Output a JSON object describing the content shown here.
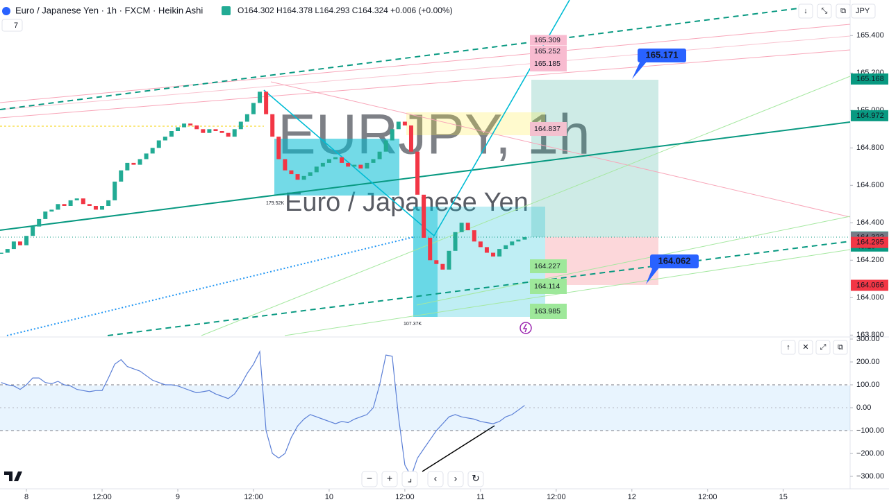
{
  "chart_data": [
    {
      "type": "candlestick",
      "title": "Euro / Japanese Yen · 1h · FXCM · Heikin Ashi",
      "legend_values": "O164.302 H164.378 L164.293 C164.324 +0.006 (+0.00%)",
      "indicator_badge": "7",
      "currency": "JPY",
      "watermark": "EURJPY, 1h",
      "watermark_subtitle": "Euro / Japanese Yen",
      "up_color": "#22ab94",
      "down_color": "#f23645",
      "x": [
        -4,
        -3,
        -2,
        -1,
        0,
        1,
        2,
        3,
        4,
        5,
        6,
        7,
        8,
        9,
        10,
        11,
        12,
        13,
        14,
        15,
        16,
        17,
        18,
        19,
        20,
        21,
        22,
        23,
        24,
        25,
        26,
        27,
        28,
        29,
        30,
        31,
        32,
        33,
        34,
        35,
        36,
        37,
        38,
        39,
        40,
        41,
        42,
        43,
        44,
        45,
        46,
        47,
        48,
        49,
        50,
        51,
        52,
        53,
        54,
        55,
        56,
        57,
        58,
        59,
        60,
        61,
        62,
        63,
        64,
        65,
        66,
        67,
        68,
        69,
        70,
        71,
        72,
        73,
        74,
        75,
        76,
        77,
        78,
        79
      ],
      "close": [
        164.24,
        164.26,
        164.3,
        164.28,
        164.33,
        164.38,
        164.42,
        164.46,
        164.47,
        164.5,
        164.49,
        164.52,
        164.53,
        164.5,
        164.49,
        164.47,
        164.49,
        164.52,
        164.62,
        164.68,
        164.72,
        164.71,
        164.74,
        164.77,
        164.8,
        164.84,
        164.86,
        164.89,
        164.91,
        164.93,
        164.92,
        164.9,
        164.88,
        164.9,
        164.89,
        164.88,
        164.86,
        164.9,
        164.94,
        164.98,
        165.04,
        165.1,
        164.98,
        164.86,
        164.74,
        164.68,
        164.66,
        164.63,
        164.65,
        164.67,
        164.7,
        164.72,
        164.74,
        164.75,
        164.72,
        164.7,
        164.71,
        164.69,
        164.72,
        164.74,
        164.78,
        164.84,
        164.9,
        164.94,
        164.92,
        164.78,
        164.55,
        164.32,
        164.2,
        164.18,
        164.15,
        164.25,
        164.35,
        164.4,
        164.36,
        164.3,
        164.27,
        164.24,
        164.22,
        164.26,
        164.28,
        164.3,
        164.31,
        164.324
      ],
      "xlim": [
        -4.19,
        130.6
      ],
      "xticks": [
        {
          "value": 0,
          "label": "8"
        },
        {
          "value": 12,
          "label": "12:00"
        },
        {
          "value": 24,
          "label": "9"
        },
        {
          "value": 36,
          "label": "12:00"
        },
        {
          "value": 48,
          "label": "10"
        },
        {
          "value": 60,
          "label": "12:00"
        },
        {
          "value": 72,
          "label": "11"
        },
        {
          "value": 84,
          "label": "12:00"
        },
        {
          "value": 96,
          "label": "12"
        },
        {
          "value": 108,
          "label": "12:00"
        },
        {
          "value": 120,
          "label": "15"
        }
      ],
      "ylim": [
        163.79,
        165.59
      ],
      "yticks": [
        {
          "value": 163.8,
          "label": "163.800"
        },
        {
          "value": 164,
          "label": "164.000"
        },
        {
          "value": 164.2,
          "label": "164.200"
        },
        {
          "value": 164.4,
          "label": "164.400"
        },
        {
          "value": 164.6,
          "label": "164.600"
        },
        {
          "value": 164.8,
          "label": "164.800"
        },
        {
          "value": 165,
          "label": "165.000"
        },
        {
          "value": 165.2,
          "label": "165.200"
        },
        {
          "value": 165.4,
          "label": "165.400"
        }
      ],
      "price_labels": [
        {
          "value": 165.168,
          "color": "#089981"
        },
        {
          "value": 164.972,
          "color": "#089981"
        },
        {
          "value": 164.324,
          "color": "#089981"
        },
        {
          "value": 164.322,
          "color": "#787b86"
        },
        {
          "value": 164.295,
          "color": "#f23645"
        },
        {
          "value": 164.066,
          "color": "#f23645"
        }
      ],
      "countdown": "48:15",
      "target_labels": [
        {
          "value": 165.309,
          "color": "#f8bbd0"
        },
        {
          "value": 165.252,
          "color": "#f8bbd0"
        },
        {
          "value": 165.185,
          "color": "#f8bbd0"
        },
        {
          "value": 164.837,
          "color": "#f3c1cf"
        },
        {
          "value": 164.227,
          "color": "#9ee89a"
        },
        {
          "value": 164.114,
          "color": "#9ee89a"
        },
        {
          "value": 163.985,
          "color": "#9ee89a"
        }
      ],
      "callouts": [
        165.171,
        164.062
      ],
      "volume_labels": [
        "179.52K",
        "107.37K"
      ],
      "controls": [
        "↓",
        "⤡",
        "⧉"
      ]
    },
    {
      "type": "line",
      "color": "#5b7fd6",
      "values": [
        110,
        100,
        95,
        80,
        100,
        130,
        130,
        110,
        105,
        115,
        100,
        95,
        80,
        75,
        70,
        75,
        75,
        130,
        190,
        210,
        180,
        170,
        160,
        140,
        120,
        110,
        100,
        100,
        95,
        85,
        75,
        65,
        70,
        75,
        60,
        50,
        40,
        60,
        100,
        150,
        190,
        245,
        -100,
        -200,
        -220,
        -200,
        -130,
        -80,
        -50,
        -30,
        -40,
        -50,
        -60,
        -70,
        -60,
        -65,
        -50,
        -40,
        -30,
        0,
        100,
        230,
        225,
        -40,
        -250,
        -300,
        -220,
        -180,
        -140,
        -100,
        -70,
        -40,
        -30,
        -40,
        -45,
        -50,
        -60,
        -65,
        -70,
        -60,
        -40,
        -30,
        -10,
        10
      ],
      "band": [
        -100,
        100
      ],
      "ylim": [
        -300,
        300
      ],
      "yticks": [
        {
          "value": 300,
          "label": "300.00"
        },
        {
          "value": 200,
          "label": "200.00"
        },
        {
          "value": 100,
          "label": "100.00"
        },
        {
          "value": 0,
          "label": "0.00"
        },
        {
          "value": -100,
          "label": "−100.00"
        },
        {
          "value": -200,
          "label": "−200.00"
        },
        {
          "value": -300,
          "label": "−300.00"
        }
      ],
      "controls": [
        "↑",
        "✕",
        "⤢",
        "⧉"
      ],
      "toolbar": [
        "−",
        "+",
        "⌟",
        "‹",
        "›",
        "↻"
      ]
    }
  ]
}
